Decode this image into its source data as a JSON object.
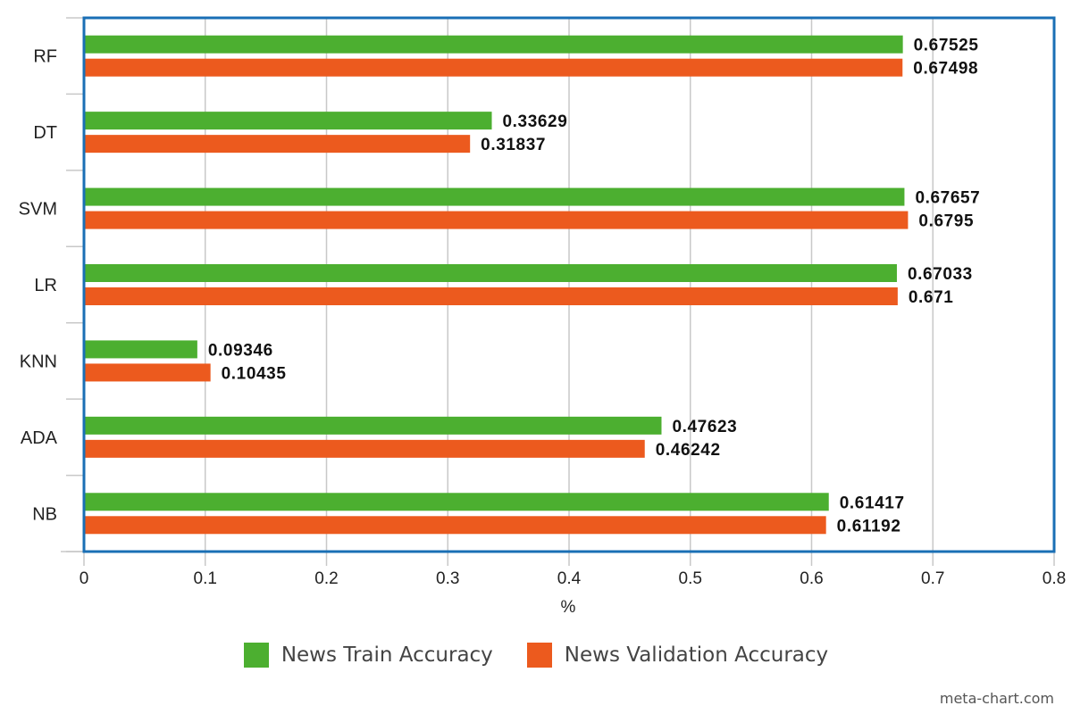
{
  "chart_data": {
    "type": "bar",
    "orientation": "horizontal",
    "categories": [
      "RF",
      "DT",
      "SVM",
      "LR",
      "KNN",
      "ADA",
      "NB"
    ],
    "series": [
      {
        "name": "News Train Accuracy",
        "color": "#4caf30",
        "values": [
          0.67525,
          0.33629,
          0.67657,
          0.67033,
          0.09346,
          0.47623,
          0.61417
        ],
        "labels": [
          "0.67525",
          "0.33629",
          "0.67657",
          "0.67033",
          "0.09346",
          "0.47623",
          "0.61417"
        ]
      },
      {
        "name": "News Validation Accuracy",
        "color": "#ec5a1e",
        "values": [
          0.67498,
          0.31837,
          0.6795,
          0.671,
          0.10435,
          0.46242,
          0.61192
        ],
        "labels": [
          "0.67498",
          "0.31837",
          "0.6795",
          "0.671",
          "0.10435",
          "0.46242",
          "0.61192"
        ]
      }
    ],
    "xlabel": "%",
    "ylabel": "",
    "xlim": [
      0,
      0.8
    ],
    "xticks": [
      "0",
      "0.1",
      "0.2",
      "0.3",
      "0.4",
      "0.5",
      "0.6",
      "0.7",
      "0.8"
    ],
    "grid": true,
    "legend_position": "bottom",
    "border_color": "#1a6fb5"
  },
  "legend": {
    "train_label": "News Train Accuracy",
    "validation_label": "News Validation Accuracy"
  },
  "watermark": "meta-chart.com"
}
